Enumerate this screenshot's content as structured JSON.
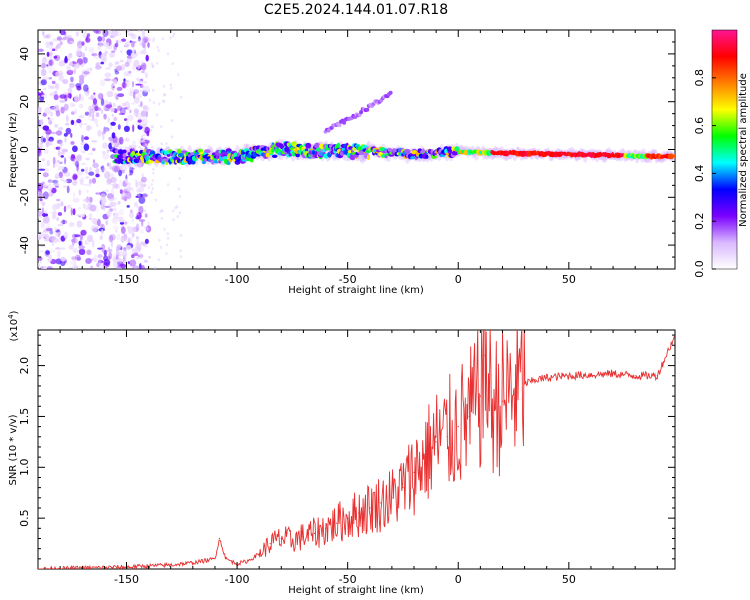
{
  "title": "C2E5.2024.144.01.07.R18",
  "chart_data": [
    {
      "type": "heatmap",
      "xlabel": "Height of straight line (km)",
      "ylabel": "Frequency (Hz)",
      "xlim": [
        -190,
        98
      ],
      "ylim": [
        -50,
        50
      ],
      "xticks": [
        -150,
        -100,
        -50,
        0,
        50
      ],
      "yticks": [
        -40,
        -20,
        0,
        20,
        40
      ],
      "colorbar": {
        "label": "Normalized spectral amplitude",
        "range": [
          0,
          1
        ],
        "ticks": [
          "0.0",
          "0.2",
          "0.4",
          "0.6",
          "0.8"
        ],
        "colormap": [
          "#ffffff",
          "#d9b8ff",
          "#7a00ff",
          "#0000ff",
          "#00ffff",
          "#00ff00",
          "#ffff00",
          "#ff7f00",
          "#ff0000",
          "#ff1493"
        ]
      },
      "features": {
        "noise_region_x": [
          -190,
          -145
        ],
        "main_band_freq_hz": [
          [
            -155,
            -3
          ],
          [
            -100,
            -3
          ],
          [
            -80,
            0
          ],
          [
            -40,
            -1
          ],
          [
            -20,
            -2
          ],
          [
            0,
            -1
          ],
          [
            50,
            -2
          ],
          [
            98,
            -3
          ]
        ],
        "secondary_trace_freq_hz": [
          [
            -60,
            8
          ],
          [
            -45,
            15
          ],
          [
            -30,
            24
          ]
        ]
      }
    },
    {
      "type": "line",
      "xlabel": "Height of straight line (km)",
      "ylabel": "SNR (10 * v/v)",
      "yunit_multiplier": "(x10",
      "yunit_exponent": "4",
      "yunit_close": ")",
      "xlim": [
        -190,
        98
      ],
      "ylim": [
        0,
        2.35
      ],
      "xticks": [
        -150,
        -100,
        -50,
        0,
        50
      ],
      "yticks": [
        0.5,
        1.0,
        1.5,
        2.0
      ],
      "ytick_labels": [
        "0.5",
        "1.0",
        "1.5",
        "2.0"
      ],
      "color": "#e83030",
      "x": [
        -190,
        -170,
        -150,
        -130,
        -120,
        -110,
        -108,
        -105,
        -100,
        -95,
        -90,
        -85,
        -80,
        -75,
        -70,
        -65,
        -60,
        -55,
        -50,
        -45,
        -40,
        -35,
        -30,
        -25,
        -20,
        -15,
        -10,
        -5,
        0,
        5,
        10,
        12,
        15,
        20,
        25,
        30,
        35,
        40,
        50,
        60,
        70,
        80,
        90,
        98
      ],
      "y": [
        0.0,
        0.01,
        0.02,
        0.04,
        0.06,
        0.1,
        0.3,
        0.1,
        0.05,
        0.08,
        0.15,
        0.25,
        0.3,
        0.28,
        0.32,
        0.35,
        0.4,
        0.45,
        0.5,
        0.55,
        0.6,
        0.65,
        0.7,
        0.8,
        0.95,
        1.1,
        1.25,
        1.3,
        1.4,
        1.5,
        1.7,
        2.1,
        1.6,
        1.65,
        1.75,
        1.82,
        1.86,
        1.88,
        1.9,
        1.91,
        1.92,
        1.9,
        1.9,
        2.3
      ]
    }
  ]
}
